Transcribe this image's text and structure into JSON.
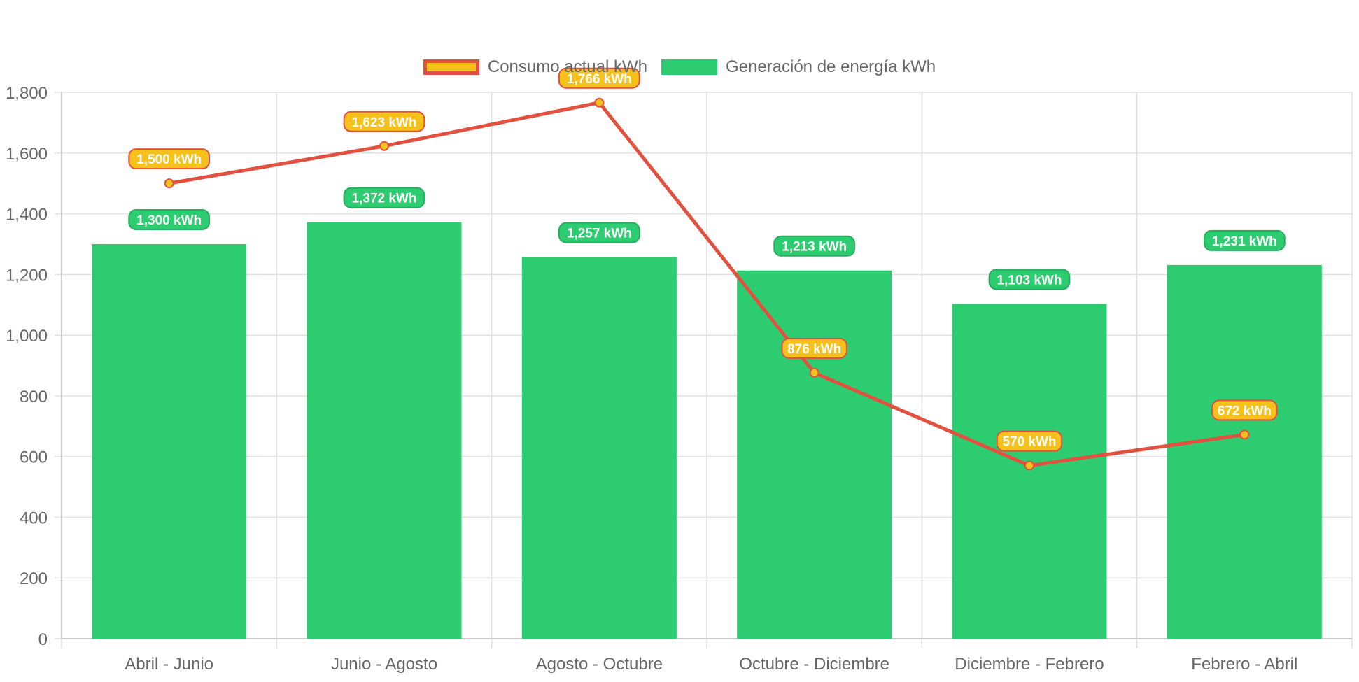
{
  "colors": {
    "consumption_line": "#e2503f",
    "consumption_fill": "#f5c11a",
    "generation_fill": "#2ecc71",
    "generation_border": "#27ae60",
    "grid": "#e0e0e0",
    "tick_text": "#666666",
    "label_text": "#ffffff"
  },
  "chart_data": {
    "type": "bar",
    "categories": [
      "Abril - Junio",
      "Junio - Agosto",
      "Agosto - Octubre",
      "Octubre - Diciembre",
      "Diciembre - Febrero",
      "Febrero - Abril"
    ],
    "series": [
      {
        "name": "Consumo actual kWh",
        "type": "line",
        "values": [
          1500,
          1623,
          1766,
          876,
          570,
          672
        ],
        "data_labels": [
          "1,500 kWh",
          "1,623 kWh",
          "1,766 kWh",
          "876 kWh",
          "570 kWh",
          "672 kWh"
        ]
      },
      {
        "name": "Generación de energía kWh",
        "type": "bar",
        "values": [
          1300,
          1372,
          1257,
          1213,
          1103,
          1231
        ],
        "data_labels": [
          "1,300 kWh",
          "1,372 kWh",
          "1,257 kWh",
          "1,213 kWh",
          "1,103 kWh",
          "1,231 kWh"
        ]
      }
    ],
    "ylim": [
      0,
      1800
    ],
    "yticks": [
      0,
      200,
      400,
      600,
      800,
      1000,
      1200,
      1400,
      1600,
      1800
    ],
    "ytick_labels": [
      "0",
      "200",
      "400",
      "600",
      "800",
      "1,000",
      "1,200",
      "1,400",
      "1,600",
      "1,800"
    ],
    "grid": true,
    "legend_position": "top-center",
    "title": "",
    "xlabel": "",
    "ylabel": ""
  }
}
